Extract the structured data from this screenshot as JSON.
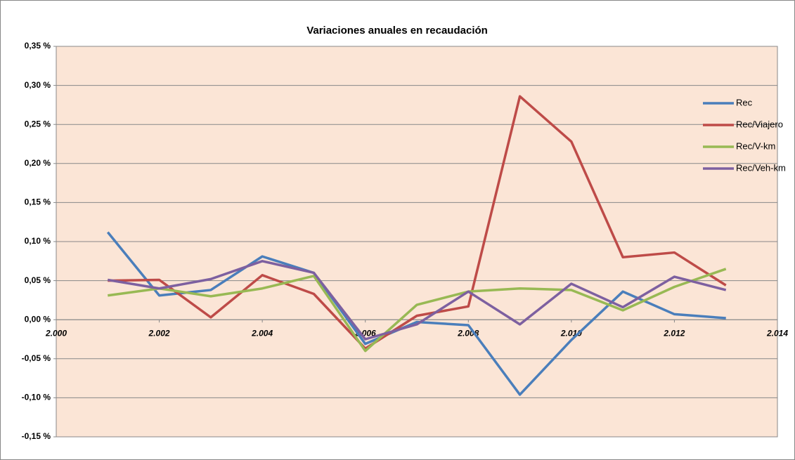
{
  "chart_data": {
    "type": "line",
    "title": "Variaciones anuales en recaudación",
    "x": [
      2001,
      2002,
      2003,
      2004,
      2005,
      2006,
      2007,
      2008,
      2009,
      2010,
      2011,
      2012,
      2013
    ],
    "series": [
      {
        "name": "Rec",
        "color": "#4a7ebb",
        "values": [
          0.112,
          0.031,
          0.038,
          0.081,
          0.06,
          -0.031,
          -0.003,
          -0.007,
          -0.096,
          -0.026,
          0.036,
          0.007,
          0.002
        ]
      },
      {
        "name": "Rec/Viajero",
        "color": "#be4b48",
        "values": [
          0.05,
          0.051,
          0.003,
          0.057,
          0.033,
          -0.037,
          0.005,
          0.017,
          0.286,
          0.228,
          0.08,
          0.086,
          0.044
        ]
      },
      {
        "name": "Rec/V-km",
        "color": "#98b954",
        "values": [
          0.031,
          0.04,
          0.03,
          0.04,
          0.056,
          -0.04,
          0.019,
          0.036,
          0.04,
          0.038,
          0.012,
          0.042,
          0.065
        ]
      },
      {
        "name": "Rec/Veh-km",
        "color": "#7d60a0",
        "values": [
          0.051,
          0.04,
          0.052,
          0.075,
          0.06,
          -0.025,
          -0.006,
          0.036,
          -0.006,
          0.046,
          0.016,
          0.055,
          0.038
        ]
      }
    ],
    "xlim": [
      2000,
      2014
    ],
    "xticks": [
      {
        "value": 2000,
        "label": "2.000"
      },
      {
        "value": 2002,
        "label": "2.002"
      },
      {
        "value": 2004,
        "label": "2.004"
      },
      {
        "value": 2006,
        "label": "2.006"
      },
      {
        "value": 2008,
        "label": "2.008"
      },
      {
        "value": 2010,
        "label": "2.010"
      },
      {
        "value": 2012,
        "label": "2.012"
      },
      {
        "value": 2014,
        "label": "2.014"
      }
    ],
    "ylim": [
      -0.15,
      0.35
    ],
    "yticks": [
      {
        "value": -0.15,
        "label": "-0,15 %"
      },
      {
        "value": -0.1,
        "label": "-0,10 %"
      },
      {
        "value": -0.05,
        "label": "-0,05 %"
      },
      {
        "value": 0,
        "label": "0,00 %"
      },
      {
        "value": 0.05,
        "label": "0,05 %"
      },
      {
        "value": 0.1,
        "label": "0,10 %"
      },
      {
        "value": 0.15,
        "label": "0,15 %"
      },
      {
        "value": 0.2,
        "label": "0,20 %"
      },
      {
        "value": 0.25,
        "label": "0,25 %"
      },
      {
        "value": 0.3,
        "label": "0,30 %"
      },
      {
        "value": 0.35,
        "label": "0,35 %"
      }
    ],
    "grid": true,
    "legend": "top-right",
    "background": "#fbe5d6"
  }
}
